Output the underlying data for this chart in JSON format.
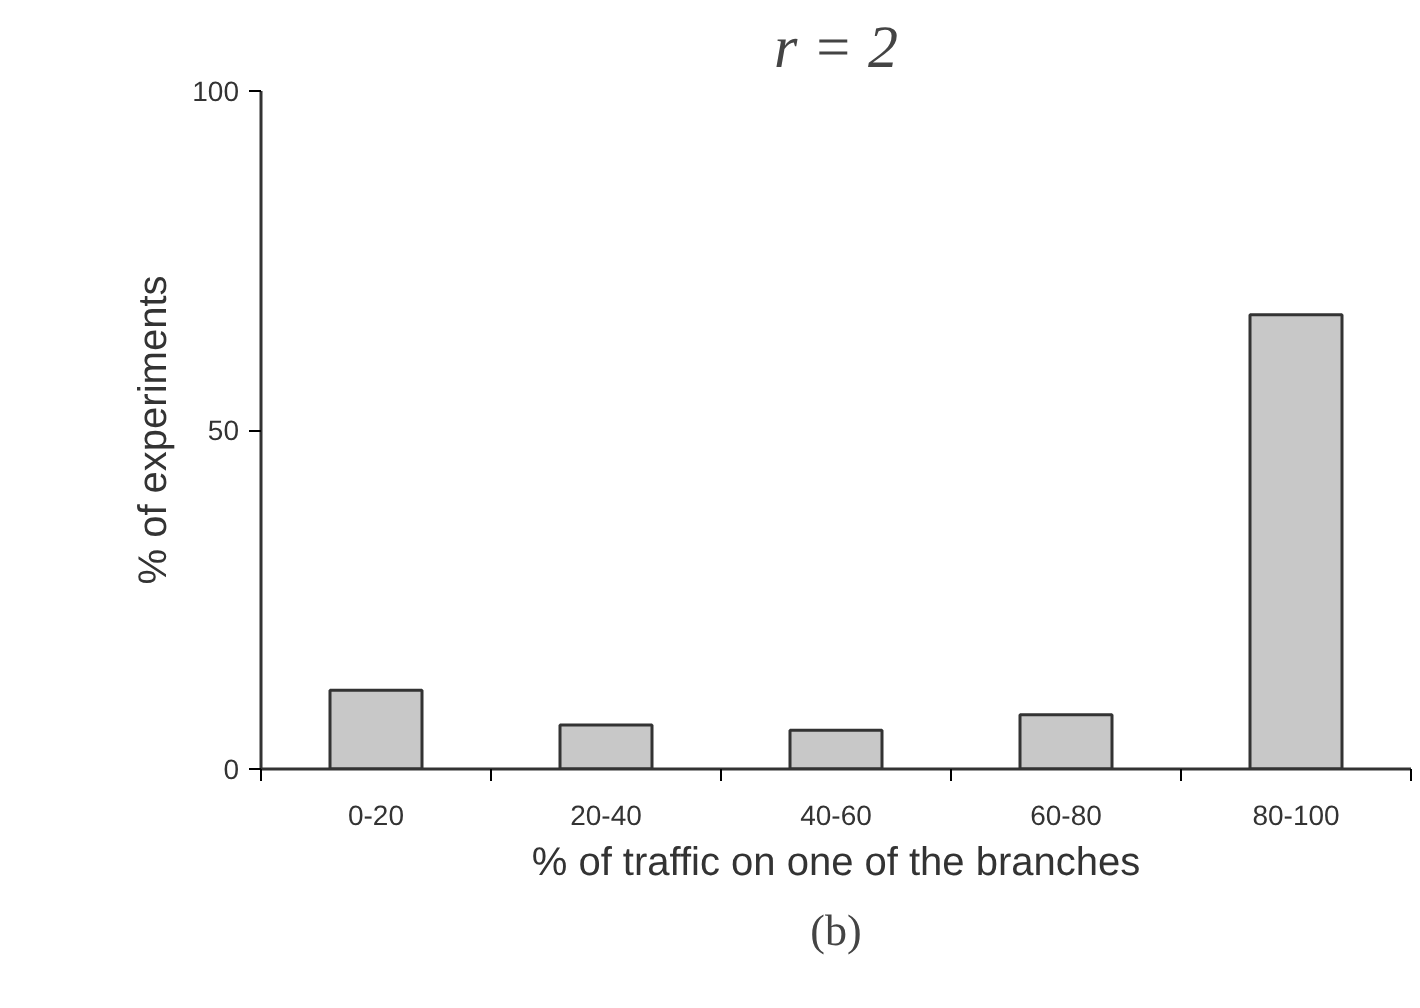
{
  "chart_data": {
    "type": "bar",
    "title": "r = 2",
    "xlabel": "% of traffic on one of the branches",
    "ylabel": "% of experiments",
    "categories": [
      "0-20",
      "20-40",
      "40-60",
      "60-80",
      "80-100"
    ],
    "values": [
      11.6,
      6.5,
      5.7,
      8.0,
      67.0
    ],
    "color": "#c8c8c8",
    "ylim": [
      0,
      100
    ],
    "yticks": [
      0,
      50,
      100
    ],
    "grid": false,
    "annotations": [
      "(b)"
    ]
  }
}
